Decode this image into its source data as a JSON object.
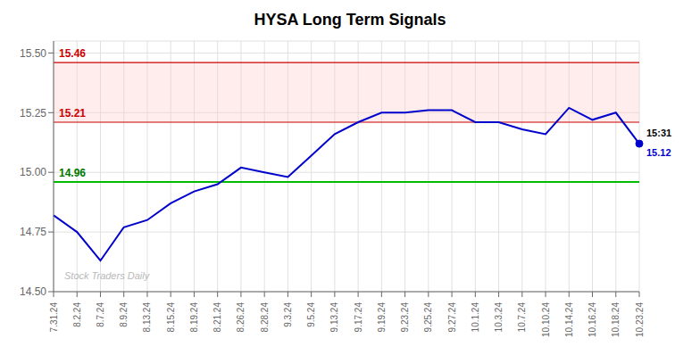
{
  "chart_data": {
    "type": "line",
    "title": "HYSA Long Term Signals",
    "categories": [
      "7.31.24",
      "8.2.24",
      "8.7.24",
      "8.9.24",
      "8.13.24",
      "8.15.24",
      "8.19.24",
      "8.21.24",
      "8.26.24",
      "8.28.24",
      "9.3.24",
      "9.5.24",
      "9.13.24",
      "9.17.24",
      "9.19.24",
      "9.23.24",
      "9.25.24",
      "9.27.24",
      "10.1.24",
      "10.3.24",
      "10.7.24",
      "10.10.24",
      "10.14.24",
      "10.16.24",
      "10.18.24",
      "10.23.24"
    ],
    "values": [
      14.82,
      14.75,
      14.63,
      14.77,
      14.8,
      14.87,
      14.92,
      14.95,
      15.02,
      15.0,
      14.98,
      15.07,
      15.16,
      15.21,
      15.25,
      15.25,
      15.26,
      15.26,
      15.21,
      15.21,
      15.18,
      15.16,
      15.27,
      15.22,
      15.25,
      15.12
    ],
    "color": "#0000cc",
    "ylim": [
      14.5,
      15.55
    ],
    "yticks": [
      {
        "value": 14.5,
        "label": "14.50"
      },
      14.75,
      {
        "value": 15.0,
        "label": "15.00"
      },
      15.25,
      {
        "value": 15.5,
        "label": "15.50"
      }
    ],
    "grid": true,
    "band": {
      "from": 15.21,
      "to": 15.46,
      "color": "#ffcccc"
    },
    "hlines": [
      {
        "value": 15.46,
        "color": "#cc0000",
        "label": "15.46",
        "label_color": "#cc0000"
      },
      {
        "value": 15.21,
        "color": "#cc0000",
        "label": "15.21",
        "label_color": "#cc0000"
      },
      {
        "value": 14.96,
        "color": "#00bb00",
        "label": "14.96",
        "label_color": "#007700"
      }
    ],
    "end_labels": [
      "15:31",
      "15.12"
    ],
    "watermark": "Stock Traders Daily"
  }
}
